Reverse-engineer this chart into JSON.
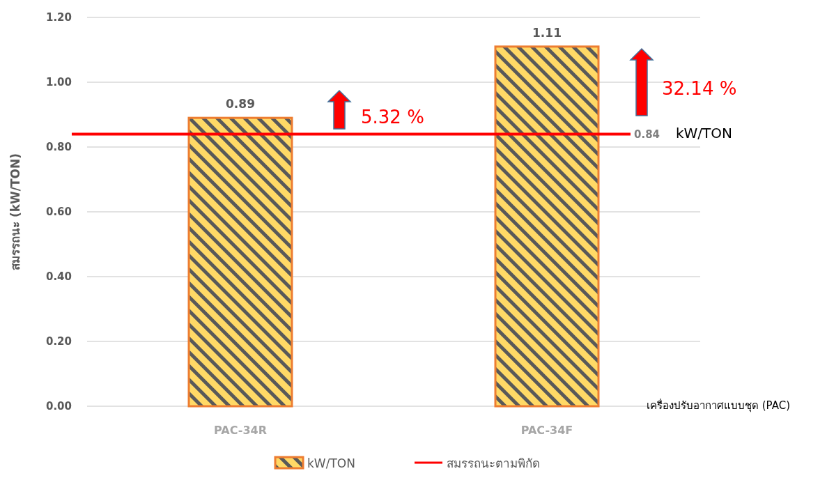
{
  "chart_data": {
    "type": "bar",
    "ylabel": "สมรรถนะ (kW/TON)",
    "xlabel": "เครื่องปรับอากาศแบบชุด (PAC)",
    "categories": [
      "PAC-34R",
      "PAC-34F"
    ],
    "series": [
      {
        "name": "kW/TON",
        "color": "#ffd966",
        "values": [
          0.89,
          1.11
        ]
      }
    ],
    "data_labels": true,
    "ylim": [
      0,
      1.2
    ],
    "yticks": [
      {
        "value": 0,
        "label": "0.00"
      },
      {
        "value": 0.2,
        "label": "0.20"
      },
      {
        "value": 0.4,
        "label": "0.40"
      },
      {
        "value": 0.6,
        "label": "0.60"
      },
      {
        "value": 0.8,
        "label": "0.80"
      },
      {
        "value": 1.0,
        "label": "1.00"
      },
      {
        "value": 1.2,
        "label": "1.20"
      }
    ],
    "grid": "y",
    "legend": "bottom",
    "ref_lines": [
      {
        "axis": "y",
        "value": 0.84,
        "label": "สมรรถนะตามพิกัด",
        "color": "#ff0000"
      }
    ],
    "annotations": [
      "0.84",
      "kW/TON",
      "5.32 %",
      "32.14 %"
    ]
  }
}
